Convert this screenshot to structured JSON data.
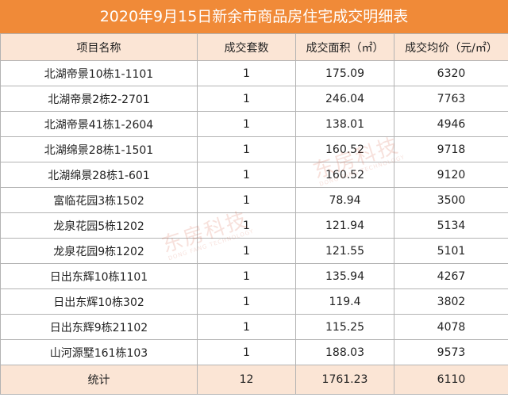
{
  "title": "2020年9月15日新余市商品房住宅成交明细表",
  "columns": [
    "项目名称",
    "成交套数",
    "成交面积（㎡）",
    "成交均价（元/㎡）"
  ],
  "rows": [
    [
      "北湖帝景10栋1-1101",
      "1",
      "175.09",
      "6320"
    ],
    [
      "北湖帝景2栋2-2701",
      "1",
      "246.04",
      "7763"
    ],
    [
      "北湖帝景41栋1-2604",
      "1",
      "138.01",
      "4946"
    ],
    [
      "北湖绵景28栋1-1501",
      "1",
      "160.52",
      "9718"
    ],
    [
      "北湖绵景28栋1-601",
      "1",
      "160.52",
      "9120"
    ],
    [
      "富临花园3栋1502",
      "1",
      "78.94",
      "3500"
    ],
    [
      "龙泉花园5栋1202",
      "1",
      "121.94",
      "5134"
    ],
    [
      "龙泉花园9栋1202",
      "1",
      "121.55",
      "5101"
    ],
    [
      "日出东辉10栋1101",
      "1",
      "135.94",
      "4267"
    ],
    [
      "日出东辉10栋302",
      "1",
      "119.4",
      "3802"
    ],
    [
      "日出东辉9栋21102",
      "1",
      "115.25",
      "4078"
    ],
    [
      "山河源墅161栋103",
      "1",
      "188.03",
      "9573"
    ]
  ],
  "total": [
    "统计",
    "12",
    "1761.23",
    "6110"
  ],
  "watermark": {
    "name": "东房科技",
    "sub": "DONG FANG TECHNOLOGY"
  },
  "colors": {
    "title_bg": "#f08a38",
    "header_bg": "#fbe5d5",
    "grid": "#b3b3b3"
  }
}
